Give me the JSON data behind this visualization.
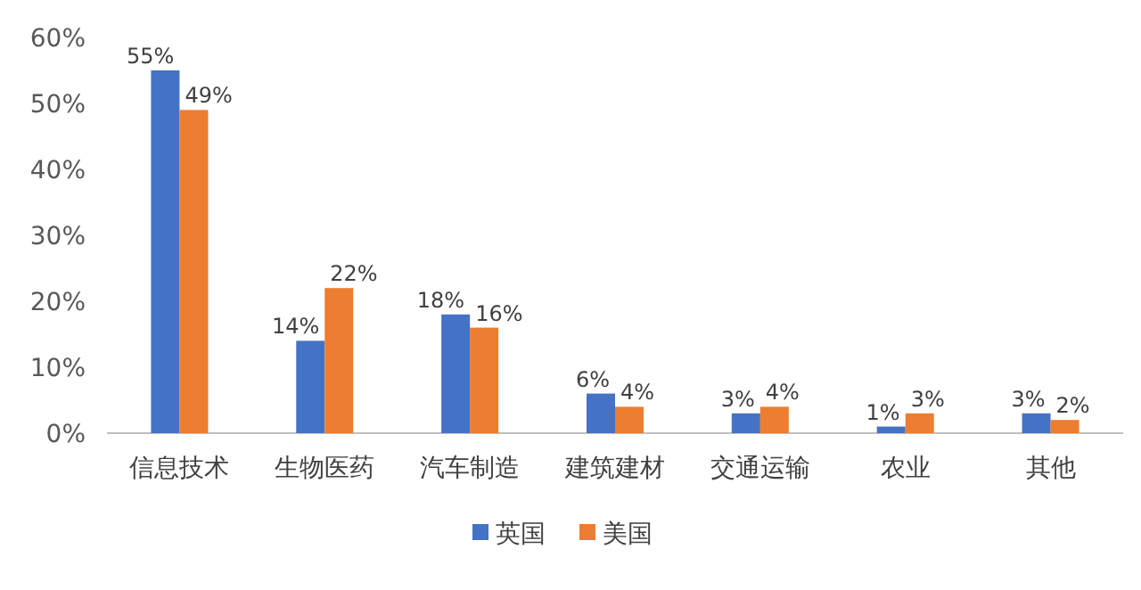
{
  "chart_data": {
    "type": "bar",
    "categories": [
      "信息技术",
      "生物医药",
      "汽车制造",
      "建筑建材",
      "交通运输",
      "农业",
      "其他"
    ],
    "series": [
      {
        "name": "英国",
        "color": "#4472c4",
        "values": [
          55,
          14,
          18,
          6,
          3,
          1,
          3
        ],
        "value_labels": [
          "55%",
          "14%",
          "18%",
          "6%",
          "3%",
          "1%",
          "3%"
        ]
      },
      {
        "name": "美国",
        "color": "#ed7d31",
        "values": [
          49,
          22,
          16,
          4,
          4,
          3,
          2
        ],
        "value_labels": [
          "49%",
          "22%",
          "16%",
          "4%",
          "4%",
          "3%",
          "2%"
        ]
      }
    ],
    "ylim": [
      0,
      60
    ],
    "yticks": [
      {
        "value": 0,
        "label": "0%"
      },
      {
        "value": 10,
        "label": "10%"
      },
      {
        "value": 20,
        "label": "20%"
      },
      {
        "value": 30,
        "label": "30%"
      },
      {
        "value": 40,
        "label": "40%"
      },
      {
        "value": 50,
        "label": "50%"
      },
      {
        "value": 60,
        "label": "60%"
      }
    ],
    "grid": false,
    "legend": "bottom"
  }
}
